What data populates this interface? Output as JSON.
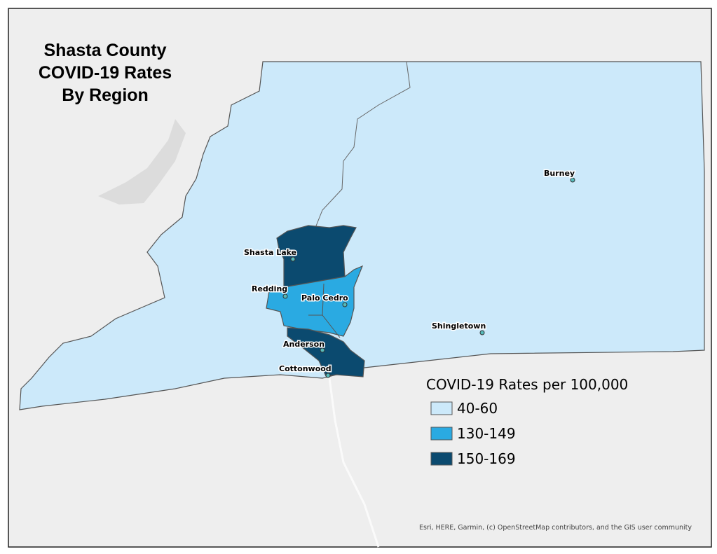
{
  "title": {
    "lines": [
      "Shasta County",
      "COVID-19 Rates",
      "By Region"
    ]
  },
  "legend": {
    "title": "COVID-19 Rates per 100,000",
    "items": [
      {
        "label": "40-60",
        "color": "#cce9fa"
      },
      {
        "label": "130-149",
        "color": "#2aaae2"
      },
      {
        "label": "150-169",
        "color": "#0b4a6f"
      }
    ]
  },
  "places": [
    {
      "label": "Burney"
    },
    {
      "label": "Shasta Lake"
    },
    {
      "label": "Redding"
    },
    {
      "label": "Palo Cedro"
    },
    {
      "label": "Shingletown"
    },
    {
      "label": "Anderson"
    },
    {
      "label": "Cottonwood"
    }
  ],
  "attribution": "Esri, HERE, Garmin, (c) OpenStreetMap contributors, and the GIS user community"
}
